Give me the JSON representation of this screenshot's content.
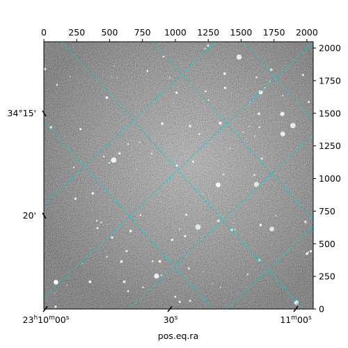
{
  "figure": {
    "image_description_color": "#9a9a9a",
    "grid_color": "#00d0d8",
    "xlabel": "pos.eq.ra",
    "pixel_axis": {
      "x_max": 2048,
      "y_max": 2048,
      "top_ticks": [
        0,
        250,
        500,
        750,
        1000,
        1250,
        1500,
        1750,
        2000
      ],
      "right_ticks": [
        0,
        250,
        500,
        750,
        1000,
        1250,
        1500,
        1750,
        2000
      ]
    },
    "world_axis": {
      "ra_labels": [
        {
          "main": "23",
          "sup1": "h",
          "mid": "10",
          "sup2": "m",
          "tail": "00",
          "sup3": "s"
        },
        {
          "main": "",
          "sup1": "",
          "mid": "",
          "sup2": "",
          "tail": "30",
          "sup3": "s"
        },
        {
          "main": "",
          "sup1": "",
          "mid": "11",
          "sup2": "m",
          "tail": "00",
          "sup3": "s"
        }
      ],
      "dec_labels": [
        "34°15'",
        "20'"
      ]
    }
  }
}
